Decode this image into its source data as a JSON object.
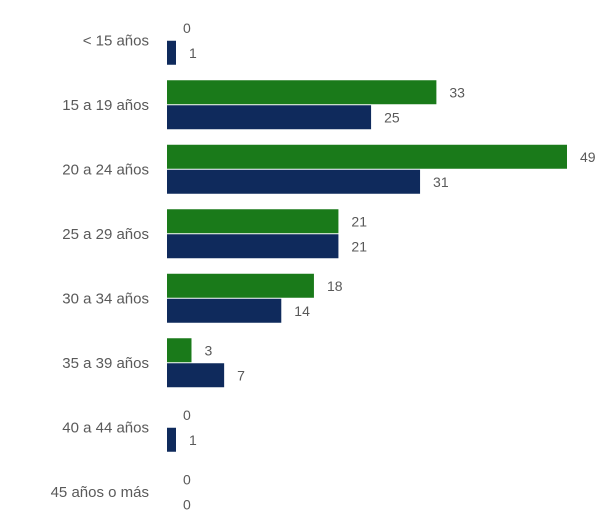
{
  "chart_data": {
    "type": "bar",
    "orientation": "horizontal",
    "categories": [
      "< 15 años",
      "15 a 19 años",
      "20 a 24 años",
      "25 a 29 años",
      "30 a 34 años",
      "35 a 39 años",
      "40 a 44 años",
      "45 años o más"
    ],
    "series": [
      {
        "color": "#1a7a1a",
        "values": [
          0,
          33,
          49,
          21,
          18,
          3,
          0,
          0
        ]
      },
      {
        "color": "#0f2a5c",
        "values": [
          1,
          25,
          31,
          21,
          14,
          7,
          1,
          0
        ]
      }
    ],
    "title": "",
    "xlabel": "",
    "ylabel": "",
    "xlim": [
      0,
      49
    ],
    "grid": false,
    "data_labels": true
  }
}
